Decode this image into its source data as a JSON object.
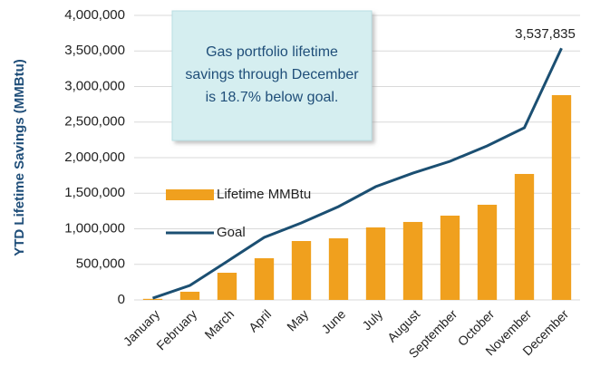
{
  "chart_data": {
    "type": "bar_line",
    "y_label": "YTD Lifetime Savings (MMBtu)",
    "annotation": [
      "Gas portfolio lifetime",
      "savings through December",
      "is 18.7% below goal."
    ],
    "categories": [
      "January",
      "February",
      "March",
      "April",
      "May",
      "June",
      "July",
      "August",
      "September",
      "October",
      "November",
      "December"
    ],
    "series": [
      {
        "name": "Lifetime MMBtu",
        "kind": "bar",
        "color": "#f0a01e",
        "values": [
          15000,
          115000,
          382000,
          586000,
          828000,
          866000,
          1019000,
          1096000,
          1185000,
          1338000,
          1771000,
          2879000
        ]
      },
      {
        "name": "Goal",
        "kind": "line",
        "color": "#1b4f72",
        "values": [
          25000,
          204000,
          540000,
          879000,
          1083000,
          1312000,
          1592000,
          1783000,
          1949000,
          2166000,
          2420000,
          3537835
        ],
        "value_labels": [
          null,
          null,
          null,
          null,
          null,
          null,
          null,
          null,
          null,
          null,
          null,
          "3,537,835"
        ]
      }
    ],
    "ylim": [
      0,
      4000000
    ],
    "yticks": [
      0,
      {
        "value": 500000,
        "label": "500,000"
      },
      {
        "value": 1000000,
        "label": "1,000,000"
      },
      {
        "value": 1500000,
        "label": "1,500,000"
      },
      {
        "value": 2000000,
        "label": "2,000,000"
      },
      {
        "value": 2500000,
        "label": "2,500,000"
      },
      {
        "value": 3000000,
        "label": "3,000,000"
      },
      {
        "value": 3500000,
        "label": "3,500,000"
      },
      {
        "value": 4000000,
        "label": "4,000,000"
      }
    ],
    "grid": true
  }
}
